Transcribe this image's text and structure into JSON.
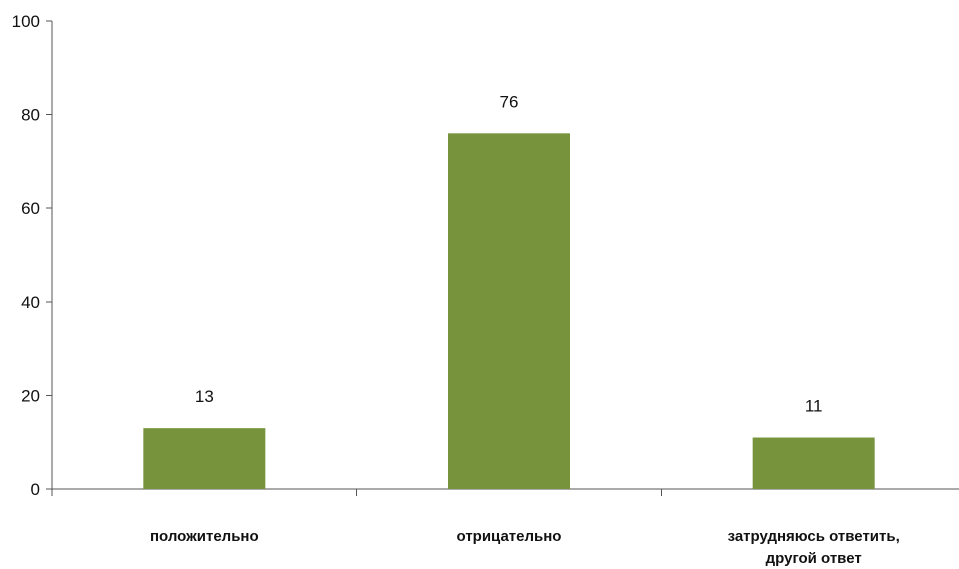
{
  "chart_data": {
    "type": "bar",
    "categories": [
      [
        "положительно"
      ],
      [
        "отрицательно"
      ],
      [
        "затрудняюсь ответить,",
        "другой ответ"
      ]
    ],
    "values": [
      13,
      76,
      11
    ],
    "data_labels": [
      "13",
      "76",
      "11"
    ],
    "ylim": [
      0,
      100
    ],
    "yticks": [
      0,
      20,
      40,
      60,
      80,
      100
    ],
    "ytick_labels": [
      "0",
      "20",
      "40",
      "60",
      "80",
      "100"
    ],
    "title": "",
    "xlabel": "",
    "ylabel": "",
    "grid": false,
    "legend": "none",
    "bar_color": "#77943c"
  }
}
